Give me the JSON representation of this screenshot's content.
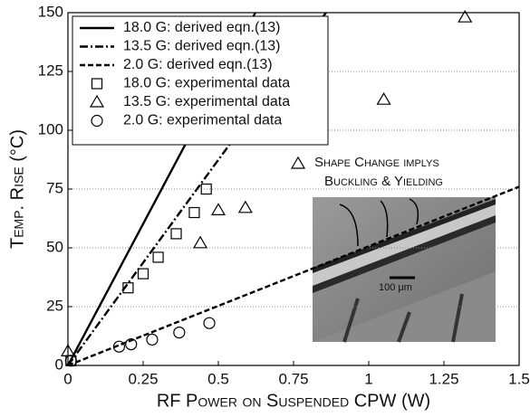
{
  "chart_data": {
    "type": "line",
    "xlabel": "RF Power on Suspended CPW  (W)",
    "ylabel": "Temp. Rise (°C)",
    "xlim": [
      0,
      1.5
    ],
    "ylim": [
      0,
      150
    ],
    "xticks": [
      0,
      0.25,
      0.5,
      0.75,
      1,
      1.25,
      1.5
    ],
    "yticks": [
      0,
      25,
      50,
      75,
      100,
      125,
      150
    ],
    "grid": true,
    "legend": "upper left",
    "series": [
      {
        "name": "18.0 G: derived eqn.(13)",
        "color": "#000000",
        "style": "solid",
        "x": [
          0,
          0.623
        ],
        "values": [
          0,
          150
        ]
      },
      {
        "name": "13.5 G: derived eqn.(13)",
        "color": "#000000",
        "style": "dashdot",
        "x": [
          0,
          0.858
        ],
        "values": [
          0,
          150
        ]
      },
      {
        "name": "2.0 G: derived eqn.(13)",
        "color": "#000000",
        "style": "dashed",
        "x": [
          0,
          1.5
        ],
        "values": [
          0,
          76
        ]
      },
      {
        "name": "18.0 G: experimental data",
        "color": "#000000",
        "marker": "square",
        "x": [
          0.01,
          0.2,
          0.25,
          0.3,
          0.36,
          0.42,
          0.46
        ],
        "values": [
          2,
          33,
          39,
          46,
          56,
          65,
          75
        ]
      },
      {
        "name": "13.5 G: experimental data",
        "color": "#000000",
        "marker": "triangle",
        "x": [
          0,
          0.44,
          0.5,
          0.59,
          1.05,
          1.32
        ],
        "values": [
          6,
          52,
          66,
          67,
          113,
          148
        ]
      },
      {
        "name": "2.0 G: experimental data",
        "color": "#000000",
        "marker": "circle",
        "x": [
          0.01,
          0.17,
          0.21,
          0.28,
          0.37,
          0.47
        ],
        "values": [
          2,
          8,
          9,
          11,
          14,
          18
        ]
      }
    ],
    "annotations": [
      "Shape Change implys",
      "Buckling & Yielding",
      "100 μm"
    ]
  }
}
